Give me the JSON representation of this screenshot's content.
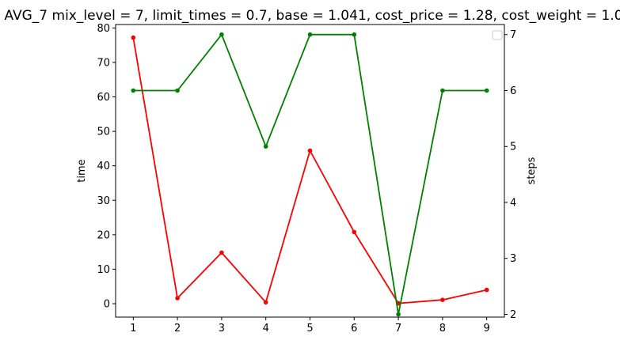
{
  "chart_data": {
    "type": "line",
    "title": "AVG_7 mix_level = 7, limit_times = 0.7, base = 1.041, cost_price = 1.28, cost_weight = 1.0",
    "x": [
      1,
      2,
      3,
      4,
      5,
      6,
      7,
      8,
      9
    ],
    "x_ticks": [
      "1",
      "2",
      "3",
      "4",
      "5",
      "6",
      "7",
      "8",
      "9"
    ],
    "xlim": [
      0.6,
      9.4
    ],
    "y_left": {
      "label": "time",
      "ticks": [
        "0",
        "10",
        "20",
        "30",
        "40",
        "50",
        "60",
        "70",
        "80"
      ],
      "ylim": [
        -3.9,
        81.0
      ]
    },
    "y_right": {
      "label": "steps",
      "ticks": [
        "2",
        "3",
        "4",
        "5",
        "6",
        "7"
      ],
      "ylim": [
        1.95,
        7.18
      ]
    },
    "series": [
      {
        "axis": "left",
        "color": "#ff0000",
        "marker": "circle",
        "values": [
          77.2,
          1.6,
          14.8,
          0.4,
          44.4,
          20.8,
          0.1,
          1.1,
          4.0
        ]
      },
      {
        "axis": "right",
        "color": "#008000",
        "marker": "circle",
        "values": [
          6,
          6,
          7,
          5,
          7,
          7,
          2,
          6,
          6
        ]
      }
    ],
    "legend": {
      "position": "top-right",
      "entries": []
    },
    "grid": false
  }
}
